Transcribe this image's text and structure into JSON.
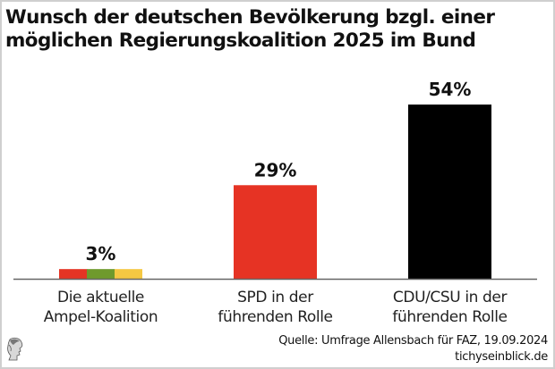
{
  "title_lines": [
    "Wunsch der deutschen Bevölkerung bzgl. einer",
    "möglichen Regierungskoalition 2025 im Bund"
  ],
  "chart_data": {
    "type": "bar",
    "title": "Wunsch der deutschen Bevölkerung bzgl. einer möglichen Regierungskoalition 2025 im Bund",
    "categories": [
      "Die aktuelle Ampel-Koalition",
      "SPD in der führenden Rolle",
      "CDU/CSU in der führenden Rolle"
    ],
    "category_label_lines": [
      [
        "Die aktuelle",
        "Ampel-Koalition"
      ],
      [
        "SPD in der",
        "führenden Rolle"
      ],
      [
        "CDU/CSU in der",
        "führenden Rolle"
      ]
    ],
    "values": [
      3,
      29,
      54
    ],
    "value_labels": [
      "3%",
      "29%",
      "54%"
    ],
    "unit": "%",
    "bar_colors": [
      [
        "#e53424",
        "#6f9a2c",
        "#f5c842"
      ],
      [
        "#e63324"
      ],
      [
        "#000000"
      ]
    ],
    "xlabel": "",
    "ylabel": "",
    "ylim": [
      0,
      54
    ],
    "grid": false,
    "legend": "none"
  },
  "footer": {
    "source": "Quelle: Umfrage Allensbach für FAZ, 19.09.2024",
    "site": "tichyseinblick.de",
    "logo_icon": "greek-head-logo-icon"
  }
}
